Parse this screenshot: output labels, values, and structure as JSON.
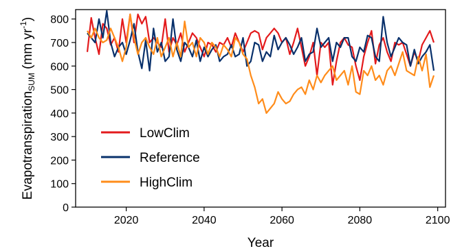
{
  "chart_data": {
    "type": "line",
    "xlabel": "Year",
    "ylabel": {
      "main": "Evapotranspiration",
      "sub": "SUM",
      "units_pre": " (mm yr",
      "units_sup": "-1",
      "units_post": ")"
    },
    "xlim": [
      2007,
      2102
    ],
    "ylim": [
      0,
      840
    ],
    "xticks": [
      2020,
      2040,
      2060,
      2080,
      2100
    ],
    "yticks": [
      0,
      100,
      200,
      300,
      400,
      500,
      600,
      700,
      800
    ],
    "legend_position": "lower-left",
    "x": [
      2010,
      2011,
      2012,
      2013,
      2014,
      2015,
      2016,
      2017,
      2018,
      2019,
      2020,
      2021,
      2022,
      2023,
      2024,
      2025,
      2026,
      2027,
      2028,
      2029,
      2030,
      2031,
      2032,
      2033,
      2034,
      2035,
      2036,
      2037,
      2038,
      2039,
      2040,
      2041,
      2042,
      2043,
      2044,
      2045,
      2046,
      2047,
      2048,
      2049,
      2050,
      2051,
      2052,
      2053,
      2054,
      2055,
      2056,
      2057,
      2058,
      2059,
      2060,
      2061,
      2062,
      2063,
      2064,
      2065,
      2066,
      2067,
      2068,
      2069,
      2070,
      2071,
      2072,
      2073,
      2074,
      2075,
      2076,
      2077,
      2078,
      2079,
      2080,
      2081,
      2082,
      2083,
      2084,
      2085,
      2086,
      2087,
      2088,
      2089,
      2090,
      2091,
      2092,
      2093,
      2094,
      2095,
      2096,
      2097,
      2098,
      2099
    ],
    "series": [
      {
        "name": "LowClim",
        "color": "#e31a1c",
        "values": [
          660,
          805,
          720,
          650,
          780,
          760,
          690,
          720,
          660,
          800,
          700,
          820,
          700,
          820,
          780,
          810,
          700,
          720,
          700,
          680,
          800,
          660,
          720,
          690,
          740,
          660,
          700,
          740,
          720,
          680,
          640,
          700,
          690,
          660,
          700,
          690,
          720,
          680,
          740,
          700,
          660,
          700,
          740,
          750,
          740,
          670,
          720,
          740,
          760,
          740,
          700,
          720,
          650,
          700,
          760,
          680,
          600,
          640,
          700,
          560,
          700,
          680,
          700,
          520,
          620,
          700,
          720,
          690,
          680,
          600,
          540,
          640,
          700,
          750,
          610,
          690,
          720,
          660,
          620,
          700,
          690,
          700,
          650,
          600,
          660,
          620,
          690,
          720,
          750,
          700
        ]
      },
      {
        "name": "Reference",
        "color": "#08306b",
        "values": [
          740,
          720,
          700,
          800,
          720,
          835,
          700,
          640,
          680,
          700,
          650,
          710,
          780,
          660,
          590,
          710,
          580,
          760,
          660,
          700,
          620,
          640,
          800,
          670,
          620,
          700,
          680,
          640,
          710,
          620,
          680,
          640,
          670,
          690,
          620,
          640,
          650,
          690,
          640,
          650,
          720,
          600,
          620,
          700,
          690,
          620,
          660,
          640,
          730,
          670,
          700,
          720,
          690,
          650,
          680,
          720,
          620,
          650,
          660,
          760,
          680,
          700,
          720,
          620,
          700,
          680,
          720,
          720,
          640,
          620,
          680,
          660,
          730,
          720,
          640,
          620,
          810,
          700,
          640,
          680,
          720,
          700,
          690,
          600,
          670,
          610,
          640,
          660,
          690,
          580
        ]
      },
      {
        "name": "HighClim",
        "color": "#ff8c1a",
        "values": [
          750,
          720,
          760,
          720,
          700,
          710,
          760,
          720,
          680,
          620,
          680,
          820,
          720,
          650,
          700,
          720,
          680,
          650,
          720,
          640,
          680,
          720,
          640,
          700,
          640,
          790,
          680,
          700,
          640,
          720,
          700,
          650,
          700,
          680,
          640,
          690,
          670,
          640,
          720,
          700,
          650,
          630,
          560,
          510,
          440,
          460,
          400,
          420,
          440,
          490,
          460,
          440,
          450,
          480,
          500,
          510,
          480,
          540,
          500,
          560,
          530,
          560,
          580,
          600,
          540,
          560,
          580,
          520,
          600,
          490,
          480,
          580,
          560,
          600,
          540,
          560,
          520,
          580,
          600,
          560,
          610,
          660,
          580,
          570,
          560,
          640,
          580,
          650,
          510,
          560
        ]
      }
    ]
  }
}
